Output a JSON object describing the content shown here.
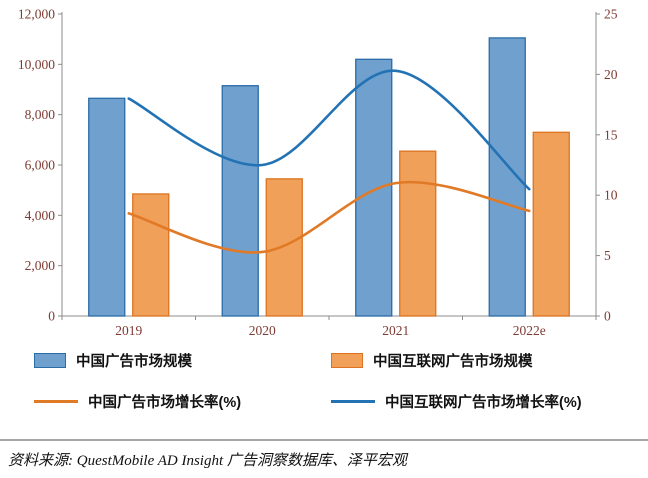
{
  "chart_data": {
    "type": "bar",
    "title": "",
    "categories": [
      "2019",
      "2020",
      "2021",
      "2022e"
    ],
    "bar_series": [
      {
        "name": "中国广告市场规模",
        "axis": "left",
        "values": [
          8650,
          9150,
          10200,
          11050
        ],
        "fill": "#6fa0ce",
        "border": "#2a6ca8"
      },
      {
        "name": "中国互联网广告市场规模",
        "axis": "left",
        "values": [
          4850,
          5450,
          6550,
          7300
        ],
        "fill": "#f0a059",
        "border": "#dd7321"
      }
    ],
    "line_series": [
      {
        "name": "中国广告市场增长率(%)",
        "axis": "right",
        "values": [
          8.5,
          5.3,
          11.0,
          8.7
        ],
        "color": "#e07a26"
      },
      {
        "name": "中国互联网广告市场增长率(%)",
        "axis": "right",
        "values": [
          18.0,
          12.5,
          20.3,
          10.5
        ],
        "color": "#2272b4"
      }
    ],
    "left_axis": {
      "min": 0,
      "max": 12000,
      "step": 2000,
      "ticks": [
        "0",
        "2,000",
        "4,000",
        "6,000",
        "8,000",
        "10,000",
        "12,000"
      ]
    },
    "right_axis": {
      "min": 0,
      "max": 25,
      "step": 5,
      "ticks": [
        "0",
        "5",
        "10",
        "15",
        "20",
        "25"
      ]
    },
    "grid": "off",
    "legend_position": "bottom"
  },
  "styles": {
    "axis_line_color": "#8c8c8c",
    "axis_label_color": "#7e3b33",
    "bar_blue_fill": "#6fa0ce",
    "bar_blue_border": "#2a6ca8",
    "bar_orange_fill": "#f0a059",
    "bar_orange_border": "#dd7321",
    "line_orange": "#e07a26",
    "line_blue": "#2272b4"
  },
  "footer": {
    "source_text": "资料来源: QuestMobile AD  Insight 广告洞察数据库、泽平宏观"
  }
}
